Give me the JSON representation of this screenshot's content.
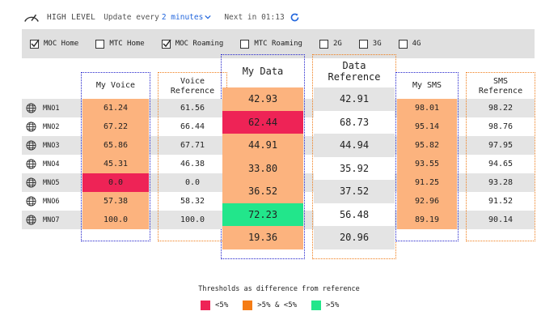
{
  "header": {
    "level": "HIGH LEVEL",
    "update_prefix": "Update every",
    "interval": "2 minutes",
    "next": "Next in 01:13"
  },
  "filters": [
    {
      "label": "MOC Home",
      "checked": true
    },
    {
      "label": "MTC Home",
      "checked": false
    },
    {
      "label": "MOC Roaming",
      "checked": true
    },
    {
      "label": "MTC Roaming",
      "checked": false
    },
    {
      "label": "2G",
      "checked": false
    },
    {
      "label": "3G",
      "checked": false
    },
    {
      "label": "4G",
      "checked": false
    }
  ],
  "rows": [
    "MNO1",
    "MNO2",
    "MNO3",
    "MNO4",
    "MNO5",
    "MNO6",
    "MNO7"
  ],
  "columns": {
    "my_voice": {
      "title": "My Voice",
      "values": [
        "61.24",
        "67.22",
        "65.86",
        "45.31",
        "0.0",
        "57.38",
        "100.0"
      ],
      "status": [
        "orange",
        "orange",
        "orange",
        "orange",
        "red",
        "orange",
        "orange"
      ]
    },
    "voice_ref": {
      "title_1": "Voice",
      "title_2": "Reference",
      "values": [
        "61.56",
        "66.44",
        "67.71",
        "46.38",
        "0.0",
        "58.32",
        "100.0"
      ]
    },
    "my_data": {
      "title": "My Data",
      "values": [
        "42.93",
        "62.44",
        "44.91",
        "33.80",
        "36.52",
        "72.23",
        "19.36"
      ],
      "status": [
        "orange",
        "red",
        "orange",
        "orange",
        "orange",
        "green",
        "orange"
      ]
    },
    "data_ref": {
      "title_1": "Data",
      "title_2": "Reference",
      "values": [
        "42.91",
        "68.73",
        "44.94",
        "35.92",
        "37.52",
        "56.48",
        "20.96"
      ]
    },
    "my_sms": {
      "title": "My SMS",
      "values": [
        "98.01",
        "95.14",
        "95.82",
        "93.55",
        "91.25",
        "92.96",
        "89.19"
      ],
      "status": [
        "orange",
        "orange",
        "orange",
        "orange",
        "orange",
        "orange",
        "orange"
      ]
    },
    "sms_ref": {
      "title_1": "SMS",
      "title_2": "Reference",
      "values": [
        "98.22",
        "98.76",
        "97.95",
        "94.65",
        "93.28",
        "91.52",
        "90.14"
      ]
    }
  },
  "legend": {
    "title": "Thresholds as difference from reference",
    "items": [
      {
        "label": "<5%",
        "color": "#ee2356"
      },
      {
        "label": ">5% & <5%",
        "color": "#f57c14"
      },
      {
        "label": ">5%",
        "color": "#22e68b"
      }
    ]
  },
  "colors": {
    "orange_cell": "#fcb37e",
    "red_cell": "#ee2356",
    "green_cell": "#22e68b",
    "my_border": "#2222cc",
    "ref_border": "#f07d1a",
    "link": "#2266dd"
  }
}
